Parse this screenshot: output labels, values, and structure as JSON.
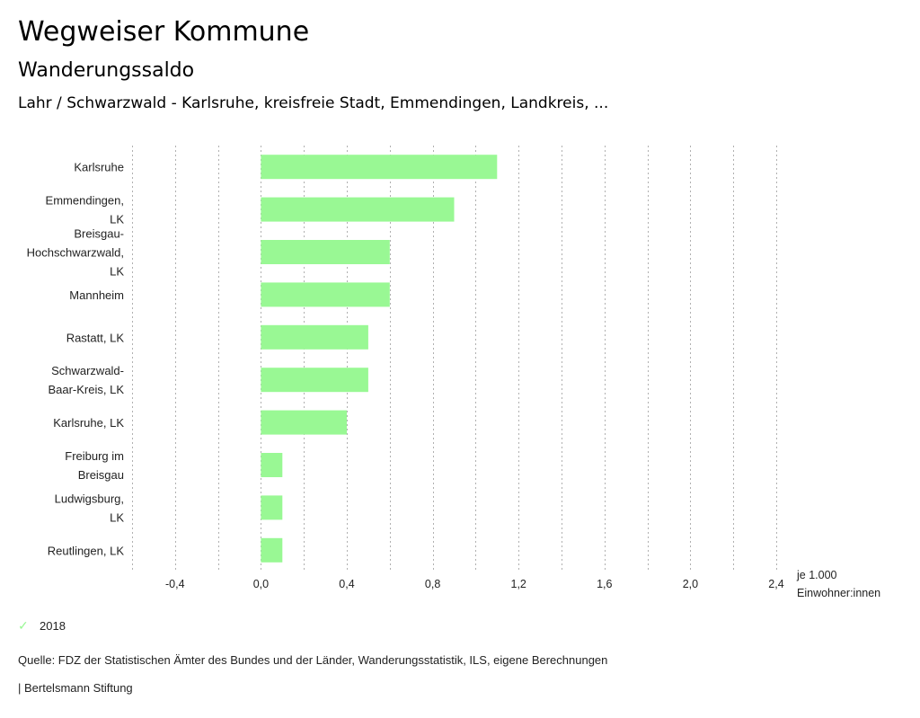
{
  "header": {
    "title": "Wegweiser Kommune",
    "subtitle": "Wanderungssaldo",
    "selection": "Lahr / Schwarzwald - Karlsruhe, kreisfreie Stadt, Emmendingen, Landkreis, ..."
  },
  "colors": {
    "bar": "#99f894",
    "grid": "#b0b0b0"
  },
  "chart_data": {
    "type": "bar",
    "orientation": "horizontal",
    "categories": [
      [
        "Karlsruhe"
      ],
      [
        "Emmendingen,",
        "LK"
      ],
      [
        "Breisgau-",
        "Hochschwarzwald,",
        "LK"
      ],
      [
        "Mannheim"
      ],
      [
        "Rastatt, LK"
      ],
      [
        "Schwarzwald-",
        "Baar-Kreis, LK"
      ],
      [
        "Karlsruhe, LK"
      ],
      [
        "Freiburg im",
        "Breisgau"
      ],
      [
        "Ludwigsburg,",
        "LK"
      ],
      [
        "Reutlingen, LK"
      ]
    ],
    "series": [
      {
        "name": "2018",
        "values": [
          1.1,
          0.9,
          0.6,
          0.6,
          0.5,
          0.5,
          0.4,
          0.1,
          0.1,
          0.1
        ]
      }
    ],
    "xlim": [
      -0.6,
      2.4
    ],
    "xticks": [
      -0.4,
      0.0,
      0.4,
      0.8,
      1.2,
      1.6,
      2.0,
      2.4
    ],
    "xtick_labels": [
      "-0,4",
      "0,0",
      "0,4",
      "0,8",
      "1,2",
      "1,6",
      "2,0",
      "2,4"
    ],
    "grid_step": 0.2,
    "grid": true,
    "xlabel_lines": [
      "je 1.000",
      "Einwohner:innen"
    ],
    "legend_position": "bottom-left"
  },
  "legend": {
    "items": [
      {
        "label": "2018",
        "icon": "check-icon"
      }
    ]
  },
  "footer": {
    "source": "Quelle: FDZ der Statistischen Ämter des Bundes und der Länder, Wanderungsstatistik, ILS, eigene Berechnungen",
    "credit": "| Bertelsmann Stiftung"
  }
}
